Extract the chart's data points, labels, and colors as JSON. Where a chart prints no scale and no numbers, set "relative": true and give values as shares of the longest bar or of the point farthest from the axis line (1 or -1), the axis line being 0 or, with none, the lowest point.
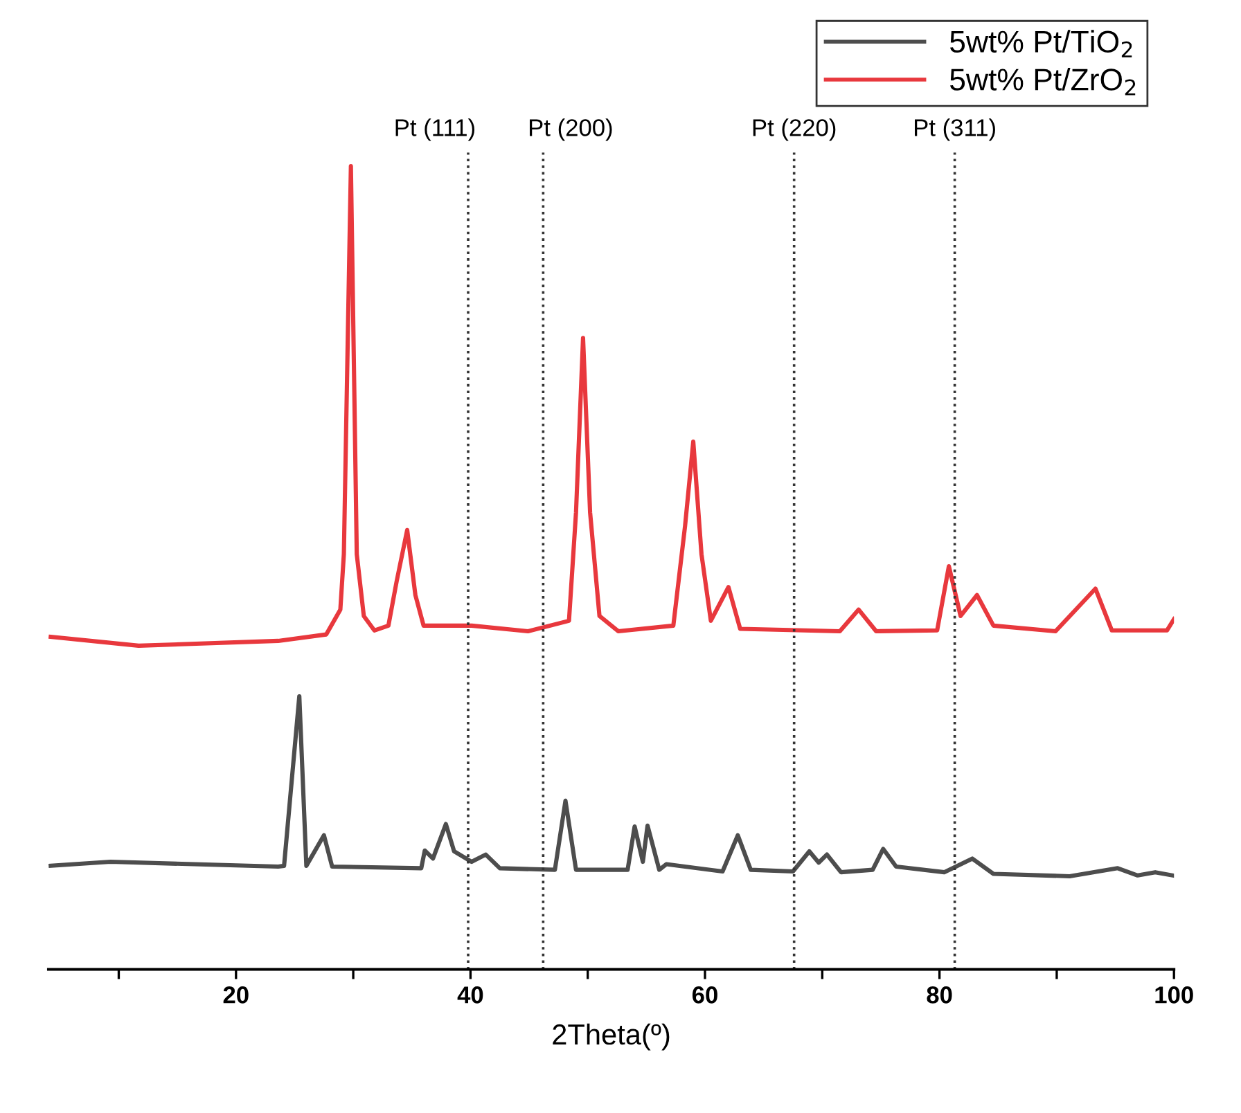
{
  "chart_data": {
    "type": "line",
    "relative": true,
    "xlabel": "2Theta(º)",
    "xlim": [
      4,
      100
    ],
    "xticks": [
      {
        "value": 10,
        "label": null
      },
      20,
      {
        "value": 30,
        "label": null
      },
      40,
      {
        "value": 50,
        "label": null
      },
      60,
      {
        "value": 70,
        "label": null
      },
      80,
      {
        "value": 90,
        "label": null
      },
      100
    ],
    "legend": "top right",
    "grid": false,
    "marker": "none",
    "line_style": "solid",
    "series": [
      {
        "name": "5wt% Pt/TiO$_{2}$",
        "color": "#4d4d4d",
        "x": [
          4.2,
          9.3,
          23.6,
          24.1,
          25.4,
          26.0,
          27.5,
          28.2,
          35.8,
          36.1,
          36.8,
          37.9,
          38.6,
          40.1,
          41.3,
          42.5,
          47.2,
          48.1,
          49.0,
          53.4,
          54.0,
          54.7,
          55.1,
          56.1,
          56.7,
          61.5,
          62.8,
          63.9,
          67.5,
          68.9,
          69.7,
          70.4,
          71.6,
          74.3,
          75.2,
          76.3,
          80.4,
          82.8,
          84.6,
          91.1,
          95.2,
          96.9,
          98.4,
          99.9
        ],
        "values": [
          0.129,
          0.134,
          0.128,
          0.129,
          0.34,
          0.129,
          0.167,
          0.128,
          0.126,
          0.148,
          0.138,
          0.181,
          0.147,
          0.134,
          0.143,
          0.126,
          0.124,
          0.21,
          0.124,
          0.124,
          0.178,
          0.134,
          0.179,
          0.124,
          0.131,
          0.122,
          0.167,
          0.124,
          0.122,
          0.147,
          0.133,
          0.143,
          0.121,
          0.124,
          0.15,
          0.128,
          0.121,
          0.138,
          0.119,
          0.116,
          0.126,
          0.117,
          0.121,
          0.117
        ]
      },
      {
        "name": "5wt% Pt/ZrO$_{2}$",
        "color": "#e8383d",
        "x": [
          4.2,
          11.7,
          23.6,
          27.7,
          28.9,
          29.2,
          29.8,
          30.3,
          30.9,
          31.8,
          33.0,
          33.7,
          34.6,
          35.3,
          36.0,
          40.1,
          44.9,
          48.4,
          49.0,
          49.6,
          50.2,
          51.0,
          52.6,
          57.3,
          58.3,
          59.0,
          59.7,
          60.5,
          62.0,
          63.0,
          71.5,
          73.1,
          74.6,
          79.8,
          80.8,
          81.8,
          83.2,
          84.6,
          89.9,
          93.3,
          94.7,
          99.4,
          100.0
        ],
        "values": [
          0.414,
          0.403,
          0.409,
          0.417,
          0.448,
          0.517,
          1.0,
          0.517,
          0.44,
          0.422,
          0.428,
          0.483,
          0.547,
          0.466,
          0.428,
          0.428,
          0.421,
          0.434,
          0.569,
          0.786,
          0.569,
          0.44,
          0.421,
          0.428,
          0.552,
          0.657,
          0.517,
          0.434,
          0.476,
          0.424,
          0.421,
          0.448,
          0.421,
          0.422,
          0.502,
          0.44,
          0.466,
          0.428,
          0.421,
          0.474,
          0.422,
          0.422,
          0.436
        ]
      }
    ],
    "ref_lines": [
      {
        "axis": "x",
        "value": 39.8,
        "label": "Pt (111)",
        "color": "#333333",
        "line_style": "dotted"
      },
      {
        "axis": "x",
        "value": 46.2,
        "label": "Pt (200)",
        "color": "#333333",
        "line_style": "dotted"
      },
      {
        "axis": "x",
        "value": 67.6,
        "label": "Pt (220)",
        "color": "#333333",
        "line_style": "dotted"
      },
      {
        "axis": "x",
        "value": 81.3,
        "label": "Pt (311)",
        "color": "#333333",
        "line_style": "dotted"
      }
    ]
  }
}
